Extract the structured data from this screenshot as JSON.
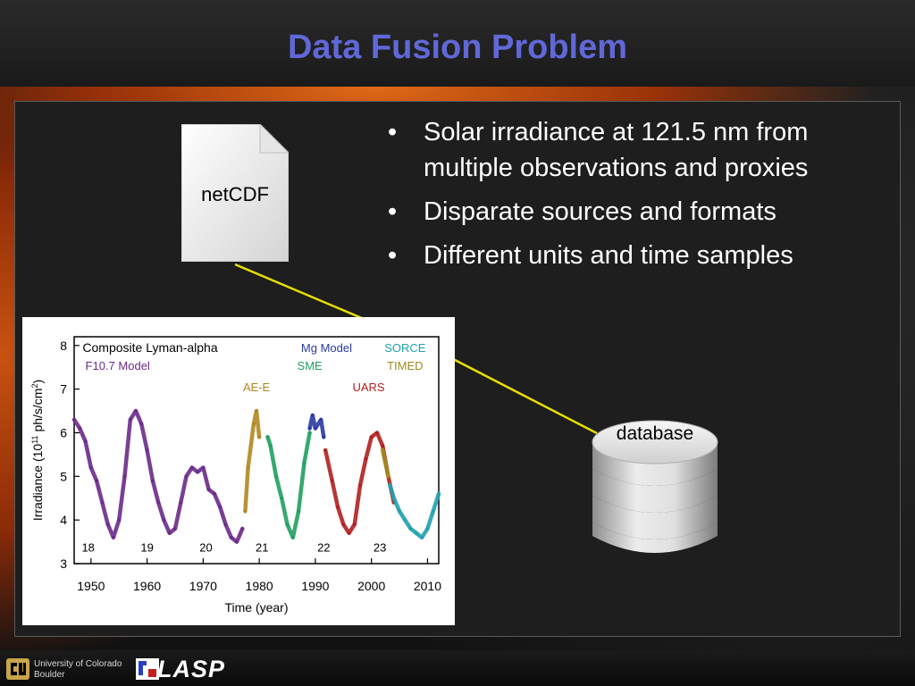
{
  "slide": {
    "title": "Data Fusion Problem",
    "bullets": [
      "Solar irradiance at 121.5 nm from multiple observations and proxies",
      "Disparate sources and formats",
      "Different units and time samples"
    ],
    "bullet_glyph": "•"
  },
  "diagram": {
    "file_label": "netCDF",
    "database_label": "database",
    "connector_color": "#e8e000"
  },
  "footer": {
    "university_line1": "University of Colorado",
    "university_line2": "Boulder",
    "lab_logo_text": "LASP"
  },
  "colors": {
    "title": "#6068d8",
    "f107": "#6a2a8a",
    "aee": "#b08820",
    "sme": "#20a060",
    "uars": "#b02020",
    "mg": "#2a3aa0",
    "timed": "#a08a20",
    "sorce": "#20a0b0"
  },
  "chart_data": {
    "type": "line",
    "title": "Composite Lyman-alpha",
    "xlabel": "Time (year)",
    "ylabel": "Irradiance (10^11 ph/s/cm^2)",
    "ylabel_parts": {
      "prefix": "Irradiance (10",
      "exp": "11",
      "mid": " ph/s/cm",
      "exp2": "2",
      "suffix": ")"
    },
    "xlim": [
      1947,
      2012
    ],
    "ylim": [
      3,
      8.2
    ],
    "x_ticks": [
      1950,
      1960,
      1970,
      1980,
      1990,
      2000,
      2010
    ],
    "x_tick_labels": [
      "1950",
      "1960",
      "1970",
      "1980",
      "1990",
      "2000",
      "2010"
    ],
    "y_ticks": [
      3,
      4,
      5,
      6,
      7,
      8
    ],
    "y_tick_labels": [
      "3",
      "4",
      "5",
      "6",
      "7",
      "8"
    ],
    "cycle_labels": [
      {
        "text": "18",
        "x": 1949.5,
        "y": 3.38
      },
      {
        "text": "19",
        "x": 1960.0,
        "y": 3.38
      },
      {
        "text": "20",
        "x": 1970.5,
        "y": 3.38
      },
      {
        "text": "21",
        "x": 1980.5,
        "y": 3.38
      },
      {
        "text": "22",
        "x": 1991.5,
        "y": 3.38
      },
      {
        "text": "23",
        "x": 2001.5,
        "y": 3.38
      }
    ],
    "legend": [
      {
        "name": "Composite Lyman-alpha",
        "color": "#000000"
      },
      {
        "name": "F10.7 Model",
        "color": "#6a2a8a"
      },
      {
        "name": "AE-E",
        "color": "#b08820"
      },
      {
        "name": "SME",
        "color": "#20a060"
      },
      {
        "name": "Mg Model",
        "color": "#2a3aa0"
      },
      {
        "name": "SORCE",
        "color": "#20a0b0"
      },
      {
        "name": "TIMED",
        "color": "#a08a20"
      },
      {
        "name": "UARS",
        "color": "#b02020"
      }
    ],
    "series": [
      {
        "name": "F10.7 Model",
        "color": "#6a2a8a",
        "x": [
          1947,
          1948,
          1949,
          1950,
          1951,
          1952,
          1953,
          1954,
          1955,
          1956,
          1957,
          1958,
          1959,
          1960,
          1961,
          1962,
          1963,
          1964,
          1965,
          1966,
          1967,
          1968,
          1969,
          1970,
          1971,
          1972,
          1973,
          1974,
          1975,
          1976,
          1977
        ],
        "y": [
          6.3,
          6.1,
          5.8,
          5.2,
          4.9,
          4.4,
          3.9,
          3.6,
          4.0,
          5.0,
          6.3,
          6.5,
          6.2,
          5.6,
          4.9,
          4.4,
          4.0,
          3.7,
          3.8,
          4.4,
          5.0,
          5.2,
          5.1,
          5.2,
          4.7,
          4.6,
          4.3,
          3.9,
          3.6,
          3.5,
          3.8
        ]
      },
      {
        "name": "AE-E",
        "color": "#b08820",
        "x": [
          1977.5,
          1978,
          1979,
          1979.5,
          1980
        ],
        "y": [
          4.2,
          5.2,
          6.2,
          6.5,
          5.9
        ]
      },
      {
        "name": "SME",
        "color": "#20a060",
        "x": [
          1981.5,
          1982,
          1983,
          1984,
          1985,
          1986,
          1987,
          1988,
          1989
        ],
        "y": [
          5.9,
          5.7,
          5.0,
          4.5,
          3.9,
          3.6,
          4.2,
          5.3,
          6.0
        ]
      },
      {
        "name": "Mg Model",
        "color": "#2a3aa0",
        "x": [
          1989,
          1989.5,
          1990,
          1991,
          1991.5
        ],
        "y": [
          6.1,
          6.4,
          6.1,
          6.3,
          5.9
        ]
      },
      {
        "name": "UARS",
        "color": "#b02020",
        "x": [
          1991.8,
          1993,
          1994,
          1995,
          1996,
          1997,
          1998,
          1999,
          2000,
          2001,
          2002,
          2003,
          2004
        ],
        "y": [
          5.6,
          4.9,
          4.3,
          3.9,
          3.7,
          3.9,
          4.8,
          5.4,
          5.9,
          6.0,
          5.7,
          5.0,
          4.4
        ]
      },
      {
        "name": "TIMED",
        "color": "#a08a20",
        "x": [
          2002,
          2002.5,
          2003
        ],
        "y": [
          5.6,
          5.3,
          5.0
        ]
      },
      {
        "name": "SORCE",
        "color": "#20a0b0",
        "x": [
          2003.3,
          2004,
          2005,
          2006,
          2007,
          2008,
          2009,
          2010,
          2011,
          2012
        ],
        "y": [
          4.8,
          4.5,
          4.2,
          4.0,
          3.8,
          3.7,
          3.6,
          3.8,
          4.2,
          4.6
        ]
      }
    ]
  }
}
